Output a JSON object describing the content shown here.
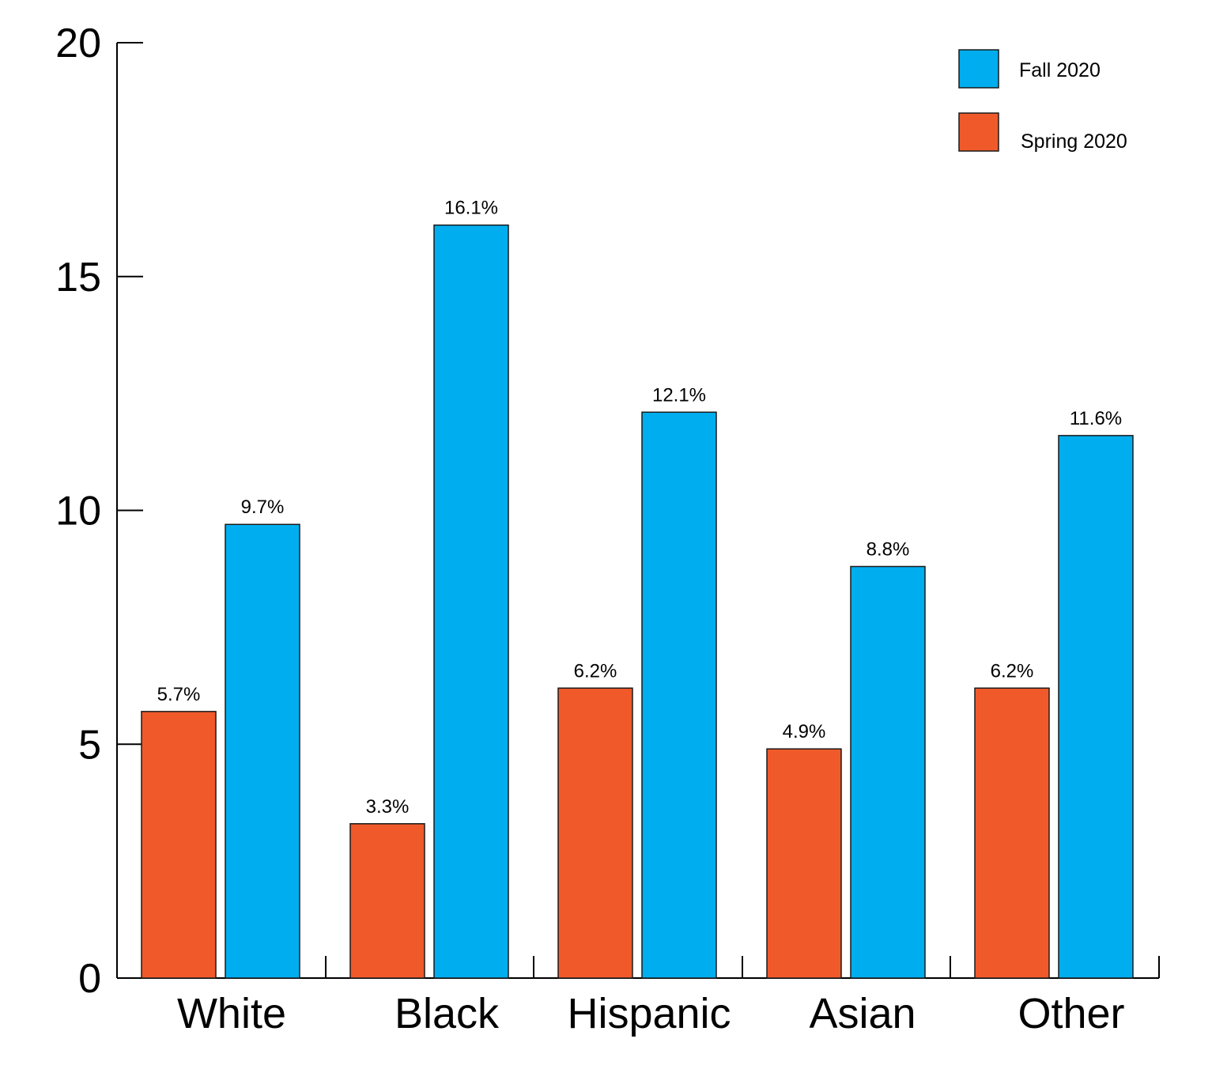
{
  "chart_data": {
    "type": "bar",
    "title": "",
    "xlabel": "",
    "ylabel": "",
    "ylim": [
      0,
      20
    ],
    "yticks": [
      0,
      5,
      10,
      15,
      20
    ],
    "categories": [
      "White",
      "Black",
      "Hispanic",
      "Asian",
      "Other"
    ],
    "series": [
      {
        "name": "Spring 2020",
        "color": "#F05A2A",
        "values": [
          5.7,
          3.3,
          6.2,
          4.9,
          6.2
        ],
        "labels": [
          "5.7%",
          "3.3%",
          "6.2%",
          "4.9%",
          "6.2%"
        ]
      },
      {
        "name": "Fall 2020",
        "color": "#00AEEF",
        "values": [
          9.7,
          16.1,
          12.1,
          8.8,
          11.6
        ],
        "labels": [
          "9.7%",
          "16.1%",
          "12.1%",
          "8.8%",
          "11.6%"
        ]
      }
    ],
    "legend": {
      "position": "top-right",
      "order": [
        "Fall 2020",
        "Spring 2020"
      ]
    },
    "grid": false
  }
}
